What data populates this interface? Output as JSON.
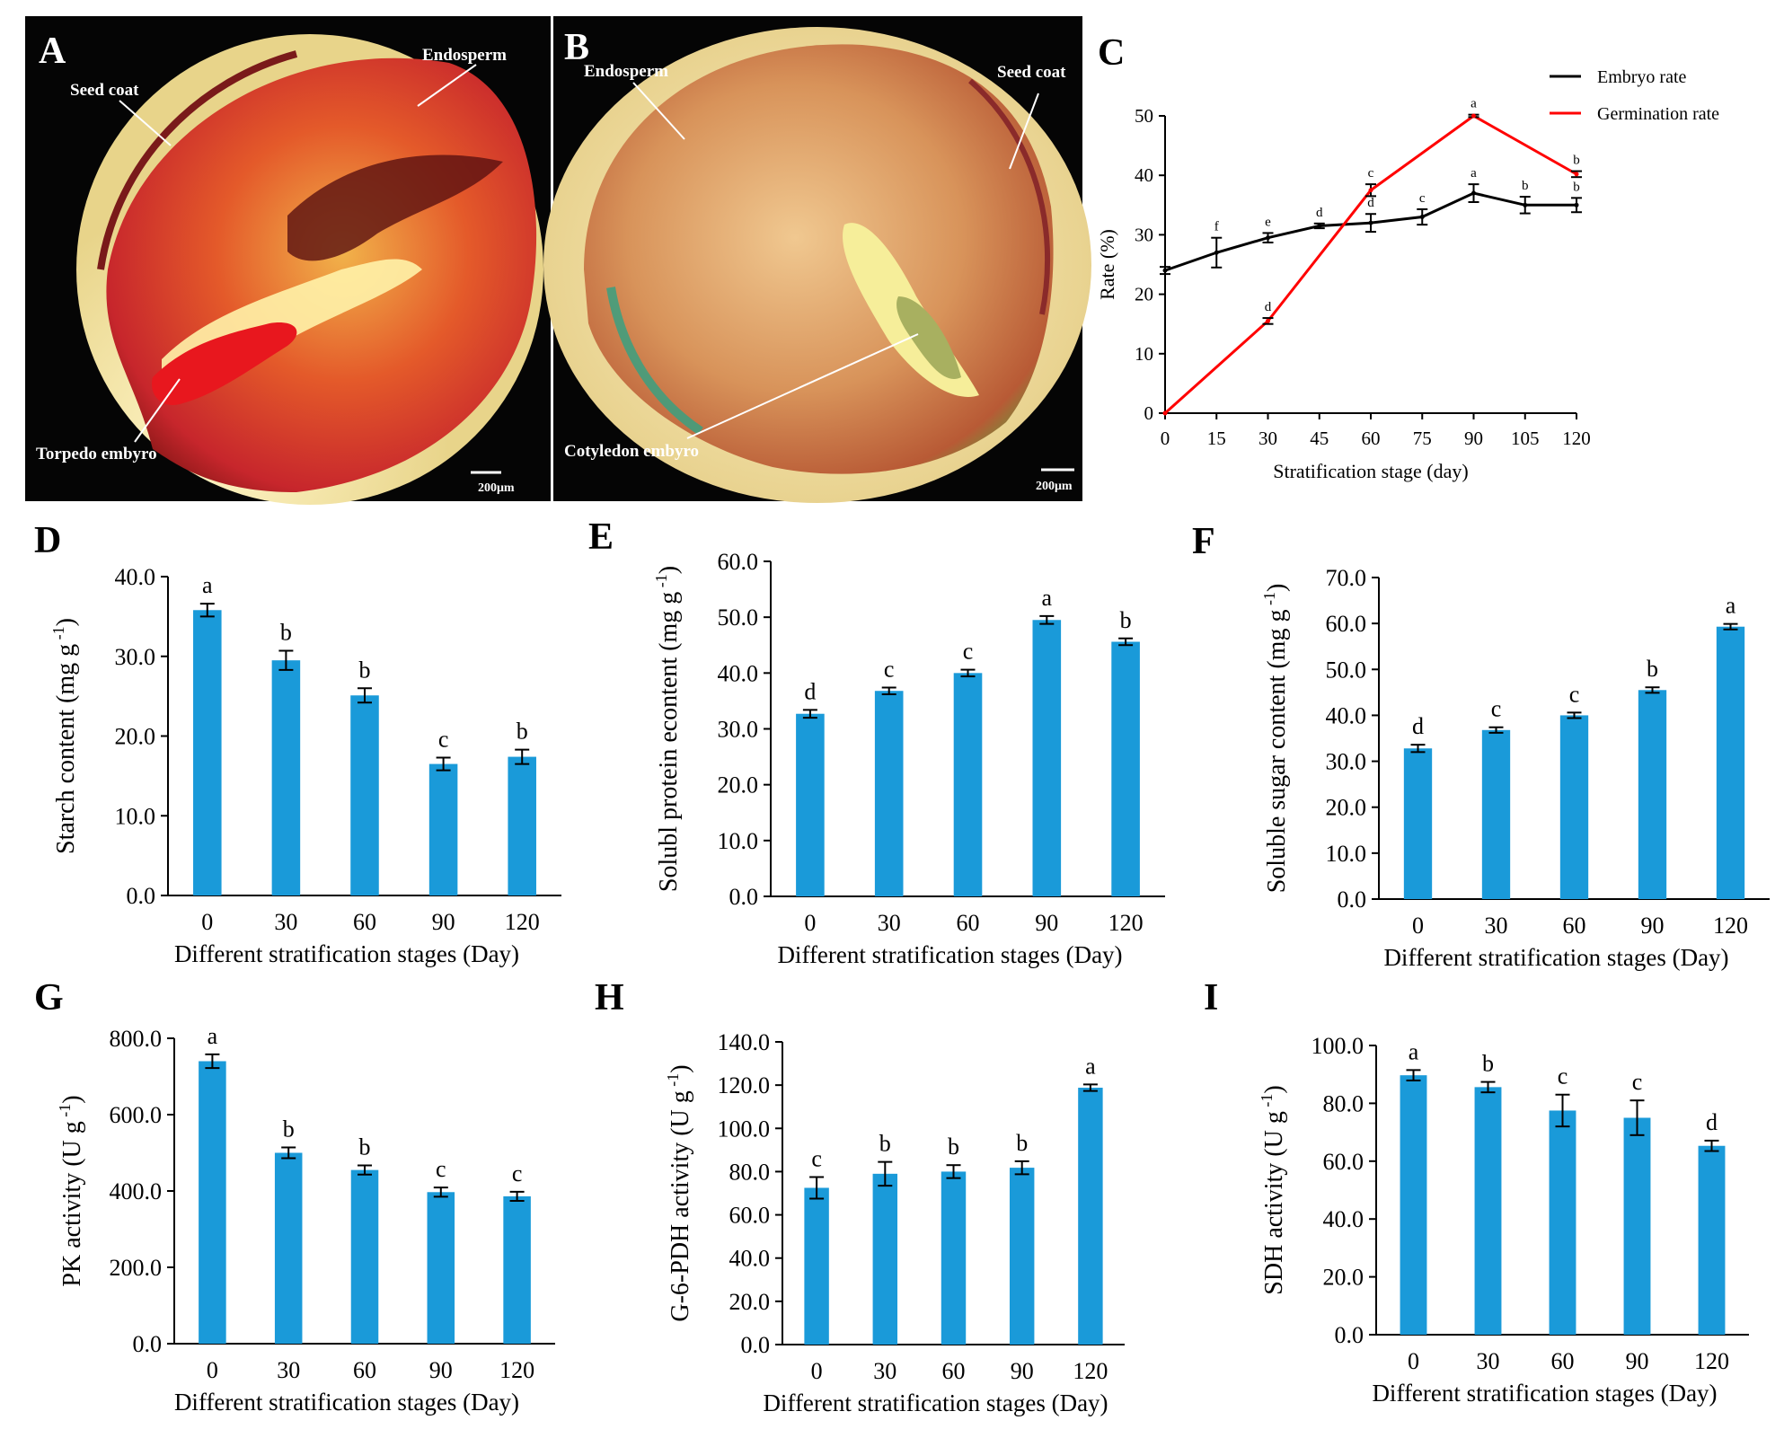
{
  "panel_letters": [
    "A",
    "B",
    "C",
    "D",
    "E",
    "F",
    "G",
    "H",
    "I"
  ],
  "micrographs": [
    {
      "panel": "A",
      "labels": {
        "endosperm": "Endosperm",
        "seed_coat": "Seed coat",
        "embryo": "Torpedo embyro",
        "scale": "200μm"
      }
    },
    {
      "panel": "B",
      "labels": {
        "endosperm": "Endosperm",
        "seed_coat": "Seed coat",
        "embryo": "Cotyledon embyro",
        "scale": "200μm"
      }
    }
  ],
  "colors": {
    "bar": "#1a9ad9",
    "embryo_line": "#000000",
    "germination_line": "#ff0000",
    "axis": "#000000"
  },
  "chart_data": [
    {
      "panel": "C",
      "type": "line",
      "title": "",
      "xlabel": "Stratification stage (day)",
      "ylabel": "Rate (%)",
      "x": [
        0,
        15,
        30,
        45,
        60,
        75,
        90,
        105,
        120
      ],
      "xticks": [
        "0",
        "15",
        "30",
        "45",
        "60",
        "75",
        "90",
        "105",
        "120"
      ],
      "yticks": [
        "0",
        "10",
        "20",
        "30",
        "40",
        "50"
      ],
      "ylim": [
        0,
        50
      ],
      "legend_position": "top-right",
      "series": [
        {
          "name": "Embryo rate",
          "color": "#000000",
          "x": [
            0,
            15,
            30,
            45,
            60,
            75,
            90,
            105,
            120
          ],
          "values": [
            24,
            27,
            29.5,
            31.5,
            32,
            33,
            37,
            35,
            35
          ],
          "errors": [
            0.6,
            2.5,
            0.8,
            0.4,
            1.5,
            1.3,
            1.5,
            1.4,
            1.2
          ],
          "letters": [
            "",
            "f",
            "e",
            "d",
            "d",
            "c",
            "a",
            "b",
            "b"
          ]
        },
        {
          "name": "Germination rate",
          "color": "#ff0000",
          "x": [
            0,
            30,
            60,
            90,
            120
          ],
          "values": [
            0,
            15.5,
            37.5,
            50,
            40.2
          ],
          "errors": [
            0,
            0.5,
            1.0,
            0.2,
            0.5
          ],
          "letters": [
            "",
            "d",
            "c",
            "a",
            "b"
          ]
        }
      ]
    },
    {
      "panel": "D",
      "type": "bar",
      "categories": [
        "0",
        "30",
        "60",
        "90",
        "120"
      ],
      "values": [
        35.8,
        29.5,
        25.1,
        16.5,
        17.4
      ],
      "errors": [
        0.8,
        1.2,
        0.9,
        0.8,
        0.9
      ],
      "letters": [
        "a",
        "b",
        "b",
        "c",
        "b"
      ],
      "ylabel": "Starch content (mg g",
      "ylabel_sup": "-1",
      "ylabel_end": ")",
      "xlabel": "Different stratification stages (Day)",
      "yticks": [
        "0.0",
        "10.0",
        "20.0",
        "30.0",
        "40.0"
      ],
      "ylim": [
        0,
        40
      ]
    },
    {
      "panel": "E",
      "type": "bar",
      "categories": [
        "0",
        "30",
        "60",
        "90",
        "120"
      ],
      "values": [
        32.7,
        36.8,
        40.0,
        49.5,
        45.6
      ],
      "errors": [
        0.7,
        0.6,
        0.6,
        0.7,
        0.6
      ],
      "letters": [
        "d",
        "c",
        "c",
        "a",
        "b"
      ],
      "ylabel": "Solubl protein econtent (mg g",
      "ylabel_sup": "-1",
      "ylabel_end": ")",
      "xlabel": "Different stratification stages (Day)",
      "yticks": [
        "0.0",
        "10.0",
        "20.0",
        "30.0",
        "40.0",
        "50.0",
        "60.0"
      ],
      "ylim": [
        0,
        60
      ]
    },
    {
      "panel": "F",
      "type": "bar",
      "categories": [
        "0",
        "30",
        "60",
        "90",
        "120"
      ],
      "values": [
        32.8,
        36.8,
        40.0,
        45.5,
        59.3
      ],
      "errors": [
        0.8,
        0.6,
        0.6,
        0.6,
        0.6
      ],
      "letters": [
        "d",
        "c",
        "c",
        "b",
        "a"
      ],
      "ylabel": "Soluble sugar content (mg g",
      "ylabel_sup": "-1",
      "ylabel_end": ")",
      "xlabel": "Different stratification stages (Day)",
      "yticks": [
        "0.0",
        "10.0",
        "20.0",
        "30.0",
        "40.0",
        "50.0",
        "60.0",
        "70.0"
      ],
      "ylim": [
        0,
        70
      ]
    },
    {
      "panel": "G",
      "type": "bar",
      "categories": [
        "0",
        "30",
        "60",
        "90",
        "120"
      ],
      "values": [
        740,
        500,
        455,
        397,
        386
      ],
      "errors": [
        18,
        14,
        12,
        12,
        12
      ],
      "letters": [
        "a",
        "b",
        "b",
        "c",
        "c"
      ],
      "ylabel": "PK activity (U g",
      "ylabel_sup": "-1",
      "ylabel_end": ")",
      "xlabel": "Different stratification stages (Day)",
      "yticks": [
        "0.0",
        "200.0",
        "400.0",
        "600.0",
        "800.0"
      ],
      "ylim": [
        0,
        800
      ]
    },
    {
      "panel": "H",
      "type": "bar",
      "categories": [
        "0",
        "30",
        "60",
        "90",
        "120"
      ],
      "values": [
        72.5,
        79,
        80,
        81.8,
        118.8
      ],
      "errors": [
        5,
        5.5,
        3,
        3,
        1.5
      ],
      "letters": [
        "c",
        "b",
        "b",
        "b",
        "a"
      ],
      "ylabel": "G-6-PDH activity (U g",
      "ylabel_sup": "-1",
      "ylabel_end": ")",
      "xlabel": "Different stratification stages (Day)",
      "yticks": [
        "0.0",
        "20.0",
        "40.0",
        "60.0",
        "80.0",
        "100.0",
        "120.0",
        "140.0"
      ],
      "ylim": [
        0,
        140
      ]
    },
    {
      "panel": "I",
      "type": "bar",
      "categories": [
        "0",
        "30",
        "60",
        "90",
        "120"
      ],
      "values": [
        89.7,
        85.6,
        77.5,
        75.0,
        65.3
      ],
      "errors": [
        1.8,
        1.8,
        5.5,
        6.0,
        1.8
      ],
      "letters": [
        "a",
        "b",
        "c",
        "c",
        "d"
      ],
      "ylabel": "SDH activity (U g",
      "ylabel_sup": "-1",
      "ylabel_end": ")",
      "xlabel": "Different stratification stages (Day)",
      "yticks": [
        "0.0",
        "20.0",
        "40.0",
        "60.0",
        "80.0",
        "100.0"
      ],
      "ylim": [
        0,
        100
      ]
    }
  ]
}
